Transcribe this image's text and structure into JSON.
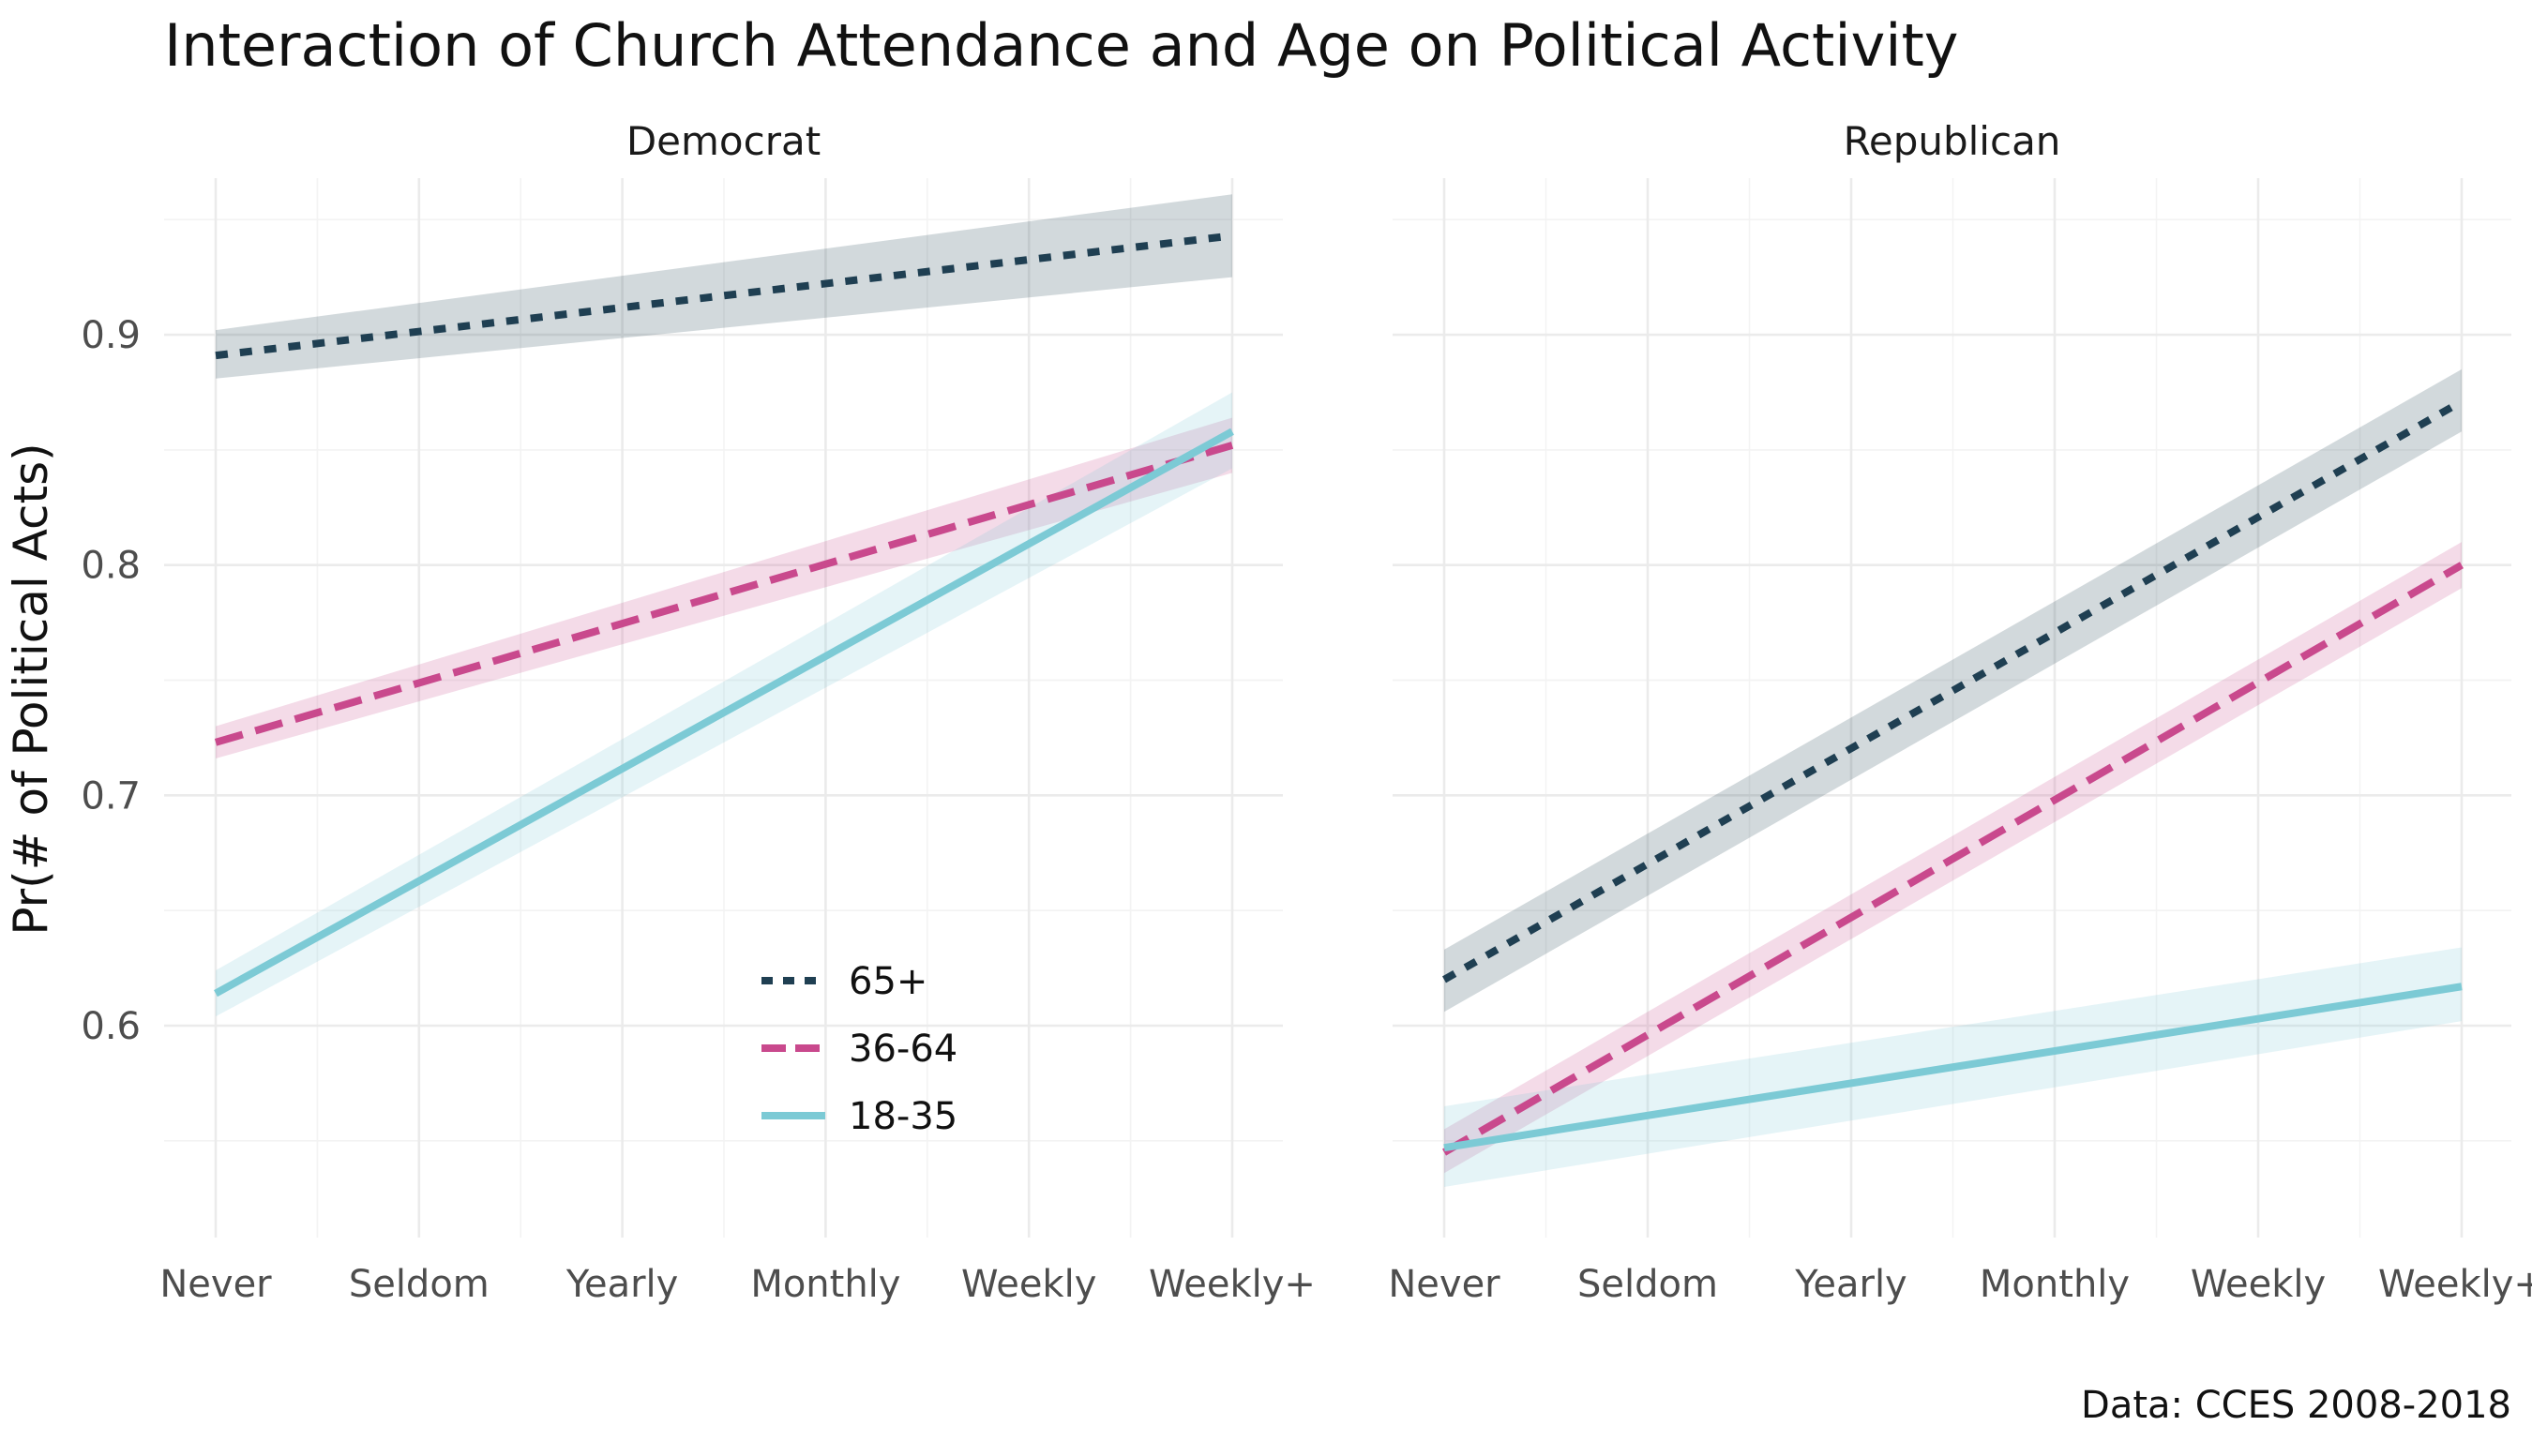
{
  "chart_data": {
    "type": "line",
    "title": "Interaction of Church Attendance and Age on Political Activity",
    "ylabel": "Pr(# of Political Acts)",
    "xlabel": "",
    "caption": "Data: CCES 2008-2018",
    "categories": [
      "Never",
      "Seldom",
      "Yearly",
      "Monthly",
      "Weekly",
      "Weekly+"
    ],
    "ylim": [
      0.508,
      0.968
    ],
    "yticks": [
      0.6,
      0.7,
      0.8,
      0.9
    ],
    "ytick_labels": [
      "0.6",
      "0.7",
      "0.8",
      "0.9"
    ],
    "grid": true,
    "legend": {
      "placement": "inside-bottom-center",
      "entries": [
        "65+",
        "36-64",
        "18-35"
      ]
    },
    "series_styles": [
      {
        "key": "65+",
        "color": "#1f3f52",
        "dash": "dotted"
      },
      {
        "key": "36-64",
        "color": "#c9498d",
        "dash": "dashed"
      },
      {
        "key": "18-35",
        "color": "#7ccad5",
        "dash": "solid"
      }
    ],
    "panels": [
      {
        "name": "Democrat",
        "series": [
          {
            "name": "65+",
            "start": 0.891,
            "end": 0.943,
            "lower": [
              0.881,
              0.925
            ],
            "upper": [
              0.902,
              0.961
            ]
          },
          {
            "name": "36-64",
            "start": 0.723,
            "end": 0.852,
            "lower": [
              0.716,
              0.84
            ],
            "upper": [
              0.73,
              0.864
            ]
          },
          {
            "name": "18-35",
            "start": 0.614,
            "end": 0.858,
            "lower": [
              0.604,
              0.842
            ],
            "upper": [
              0.624,
              0.875
            ]
          }
        ]
      },
      {
        "name": "Republican",
        "series": [
          {
            "name": "65+",
            "start": 0.62,
            "end": 0.871,
            "lower": [
              0.606,
              0.858
            ],
            "upper": [
              0.633,
              0.885
            ]
          },
          {
            "name": "36-64",
            "start": 0.545,
            "end": 0.8,
            "lower": [
              0.536,
              0.79
            ],
            "upper": [
              0.555,
              0.81
            ]
          },
          {
            "name": "18-35",
            "start": 0.547,
            "end": 0.617,
            "lower": [
              0.53,
              0.602
            ],
            "upper": [
              0.565,
              0.634
            ]
          }
        ]
      }
    ]
  }
}
